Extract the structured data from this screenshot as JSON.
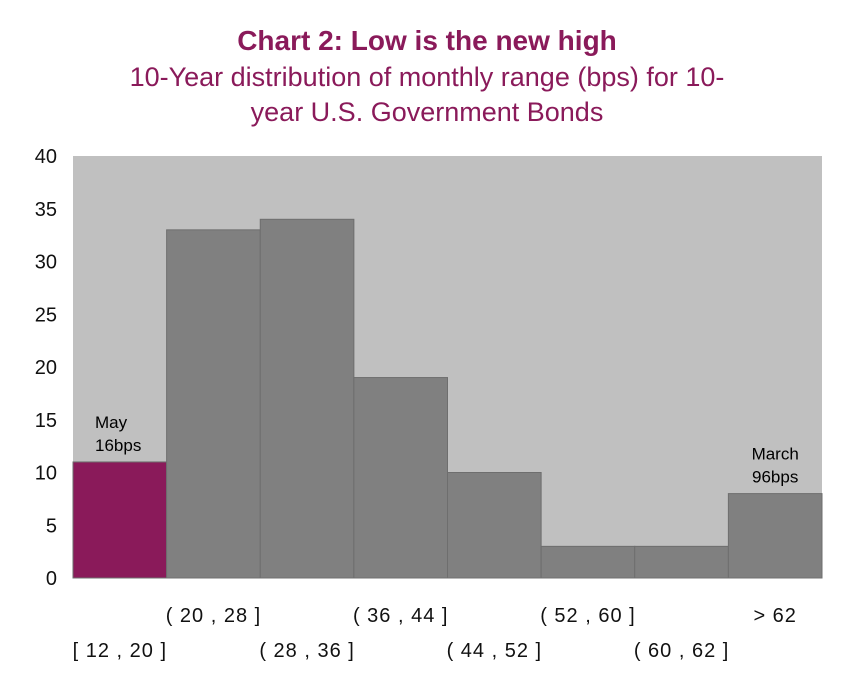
{
  "chart_data": {
    "type": "bar",
    "title": "Chart 2: Low is the new high",
    "subtitle_line1": "10-Year distribution of monthly range (bps) for 10-",
    "subtitle_line2": "year U.S. Government Bonds",
    "categories": [
      "[ 12 , 20 ]",
      "( 20 , 28 ]",
      "( 28 , 36 ]",
      "( 36 , 44 ]",
      "( 44 , 52 ]",
      "( 52 , 60 ]",
      "( 60 , 62 ]",
      "> 62"
    ],
    "values": [
      11,
      33,
      34,
      19,
      10,
      3,
      3,
      8
    ],
    "highlight_index": 0,
    "ylim": [
      0,
      40
    ],
    "yticks": [
      "0",
      "5",
      "10",
      "15",
      "20",
      "25",
      "30",
      "35",
      "40"
    ],
    "xlabel": "",
    "ylabel": "",
    "grid": false,
    "annotations": [
      {
        "category_index": 0,
        "line1": "May",
        "line2": "16bps"
      },
      {
        "category_index": 7,
        "line1": "March",
        "line2": "96bps"
      }
    ],
    "colors": {
      "plot_background": "#c0c0c0",
      "bar": "#808080",
      "bar_highlight": "#8a1a5a",
      "title": "#8a1a5a"
    }
  }
}
